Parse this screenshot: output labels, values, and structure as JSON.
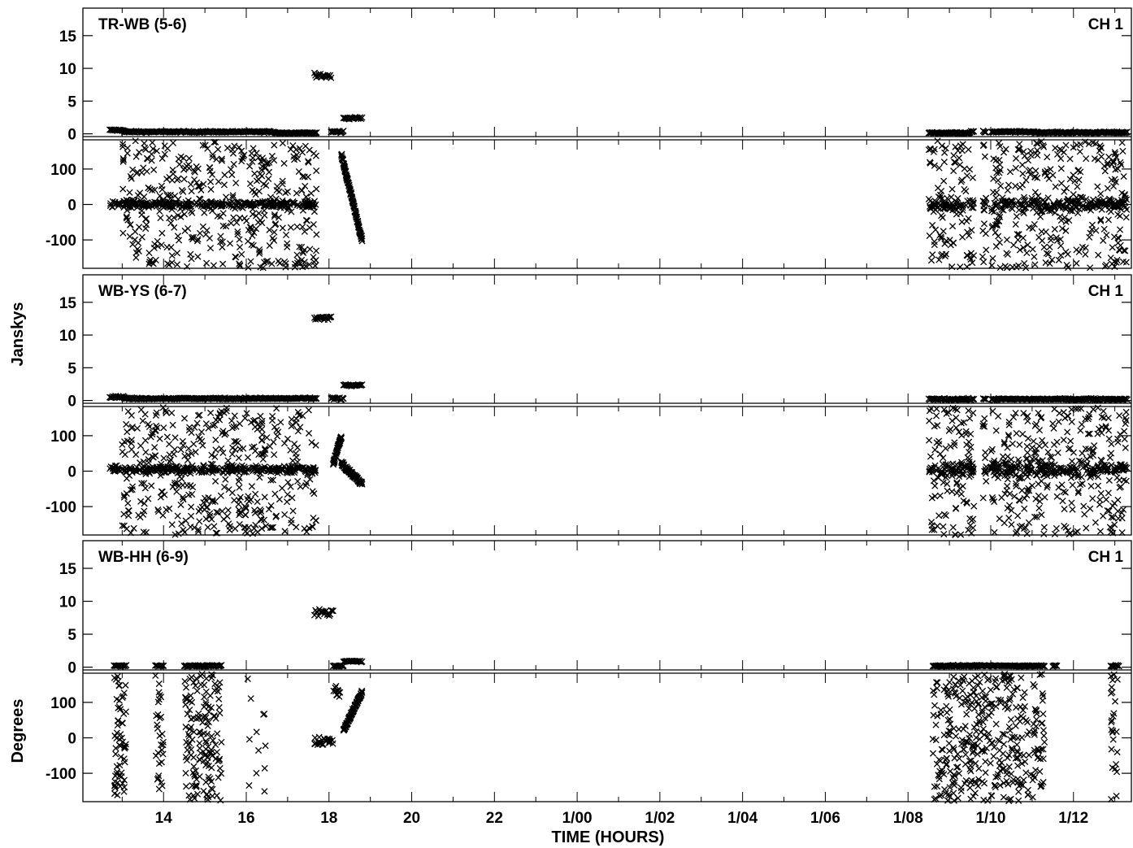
{
  "chart_data": {
    "type": "scatter",
    "ylabel_amplitude": "Janskys",
    "ylabel_phase": "Degrees",
    "xlabel": "TIME (HOURS)",
    "x_ticks": [
      {
        "hour": 14,
        "label": "14"
      },
      {
        "hour": 16,
        "label": "16"
      },
      {
        "hour": 18,
        "label": "18"
      },
      {
        "hour": 20,
        "label": "20"
      },
      {
        "hour": 22,
        "label": "22"
      },
      {
        "hour": 24,
        "label": "1/00"
      },
      {
        "hour": 26,
        "label": "1/02"
      },
      {
        "hour": 28,
        "label": "1/04"
      },
      {
        "hour": 30,
        "label": "1/06"
      },
      {
        "hour": 32,
        "label": "1/08"
      },
      {
        "hour": 34,
        "label": "1/10"
      },
      {
        "hour": 36,
        "label": "1/12"
      }
    ],
    "xlim": [
      12.05,
      37.4
    ],
    "amp_ticks": [
      {
        "value": 15,
        "label": "15"
      },
      {
        "value": 10,
        "label": "10"
      },
      {
        "value": 5,
        "label": "5"
      },
      {
        "value": 0,
        "label": "0"
      }
    ],
    "phase_ticks": [
      {
        "value": 100,
        "label": "100"
      },
      {
        "value": 0,
        "label": "0"
      },
      {
        "value": -100,
        "label": "-100"
      }
    ],
    "amp_ylim": [
      -0.3,
      19.2
    ],
    "phase_ylim": [
      -180,
      180
    ],
    "marker": "x",
    "color": "#000000",
    "panels": [
      {
        "title": "TR-WB (5-6)",
        "channel": "CH 1",
        "amp_segments": [
          {
            "start": 12.7,
            "end": 13.05,
            "value": 0.55,
            "spread": 0.15
          },
          {
            "start": 13.05,
            "end": 16.7,
            "value": 0.3,
            "spread": 0.12
          },
          {
            "start": 16.7,
            "end": 17.7,
            "value": 0.15,
            "spread": 0.1
          },
          {
            "start": 17.65,
            "end": 18.05,
            "value": 8.8,
            "spread": 0.4
          },
          {
            "start": 18.05,
            "end": 18.35,
            "value": 0.3,
            "spread": 0.2
          },
          {
            "start": 18.35,
            "end": 18.8,
            "value": 2.4,
            "spread": 0.15
          },
          {
            "start": 32.5,
            "end": 33.5,
            "value": 0.15,
            "spread": 0.1
          },
          {
            "start": 33.5,
            "end": 35.1,
            "value": 0.3,
            "spread": 0.12
          },
          {
            "start": 35.1,
            "end": 37.3,
            "value": 0.2,
            "spread": 0.12
          }
        ],
        "phase_dense": [
          {
            "start": 12.7,
            "end": 17.7,
            "value": 0,
            "spread": 10
          },
          {
            "start": 32.5,
            "end": 37.3,
            "value": 0,
            "spread": 18
          }
        ],
        "phase_scatter": [
          {
            "start": 13.0,
            "end": 17.7,
            "count": 420
          },
          {
            "start": 32.5,
            "end": 37.3,
            "count": 420
          }
        ],
        "phase_ramps": [
          {
            "start": 18.3,
            "end": 18.8,
            "from": 140,
            "to": -100,
            "count": 110
          }
        ],
        "gaps": [
          [
            33.6,
            33.8
          ],
          [
            33.9,
            34.0
          ]
        ]
      },
      {
        "title": "WB-YS (6-7)",
        "channel": "CH 1",
        "amp_segments": [
          {
            "start": 12.7,
            "end": 13.05,
            "value": 0.55,
            "spread": 0.15
          },
          {
            "start": 13.05,
            "end": 17.7,
            "value": 0.3,
            "spread": 0.12
          },
          {
            "start": 17.65,
            "end": 18.05,
            "value": 12.6,
            "spread": 0.3
          },
          {
            "start": 18.05,
            "end": 18.35,
            "value": 0.3,
            "spread": 0.2
          },
          {
            "start": 18.35,
            "end": 18.8,
            "value": 2.3,
            "spread": 0.15
          },
          {
            "start": 32.5,
            "end": 37.3,
            "value": 0.2,
            "spread": 0.12
          }
        ],
        "phase_dense": [
          {
            "start": 12.7,
            "end": 17.7,
            "value": 5,
            "spread": 10
          },
          {
            "start": 32.5,
            "end": 37.3,
            "value": 5,
            "spread": 18
          }
        ],
        "phase_scatter": [
          {
            "start": 13.0,
            "end": 17.7,
            "count": 420
          },
          {
            "start": 32.5,
            "end": 37.3,
            "count": 420
          }
        ],
        "phase_ramps": [
          {
            "start": 18.1,
            "end": 18.3,
            "from": 20,
            "to": 100,
            "count": 40
          },
          {
            "start": 18.3,
            "end": 18.8,
            "from": 20,
            "to": -35,
            "count": 80
          }
        ],
        "gaps": [
          [
            33.6,
            33.8
          ],
          [
            33.9,
            34.0
          ]
        ]
      },
      {
        "title": "WB-HH (6-9)",
        "channel": "CH 1",
        "amp_segments": [
          {
            "start": 12.8,
            "end": 13.1,
            "value": 0.2,
            "spread": 0.1
          },
          {
            "start": 13.8,
            "end": 14.0,
            "value": 0.2,
            "spread": 0.1
          },
          {
            "start": 14.5,
            "end": 15.4,
            "value": 0.2,
            "spread": 0.1
          },
          {
            "start": 17.65,
            "end": 18.1,
            "value": 8.3,
            "spread": 0.6
          },
          {
            "start": 18.1,
            "end": 18.35,
            "value": 0.2,
            "spread": 0.15
          },
          {
            "start": 18.35,
            "end": 18.8,
            "value": 0.9,
            "spread": 0.12
          },
          {
            "start": 32.6,
            "end": 35.3,
            "value": 0.2,
            "spread": 0.1
          },
          {
            "start": 35.5,
            "end": 35.6,
            "value": 0.2,
            "spread": 0.1
          },
          {
            "start": 36.9,
            "end": 37.1,
            "value": 0.2,
            "spread": 0.1
          }
        ],
        "phase_dense": [
          {
            "start": 17.65,
            "end": 18.1,
            "value": -10,
            "spread": 12
          },
          {
            "start": 18.1,
            "end": 18.3,
            "value": 130,
            "spread": 25
          }
        ],
        "phase_scatter": [
          {
            "start": 12.8,
            "end": 13.1,
            "count": 60
          },
          {
            "start": 13.8,
            "end": 14.0,
            "count": 30
          },
          {
            "start": 14.5,
            "end": 15.4,
            "count": 150
          },
          {
            "start": 16.0,
            "end": 16.5,
            "count": 12
          },
          {
            "start": 32.6,
            "end": 35.3,
            "count": 380
          },
          {
            "start": 36.9,
            "end": 37.1,
            "count": 25
          }
        ],
        "phase_ramps": [
          {
            "start": 18.35,
            "end": 18.8,
            "from": 20,
            "to": 130,
            "count": 80
          }
        ],
        "gaps": []
      }
    ]
  }
}
